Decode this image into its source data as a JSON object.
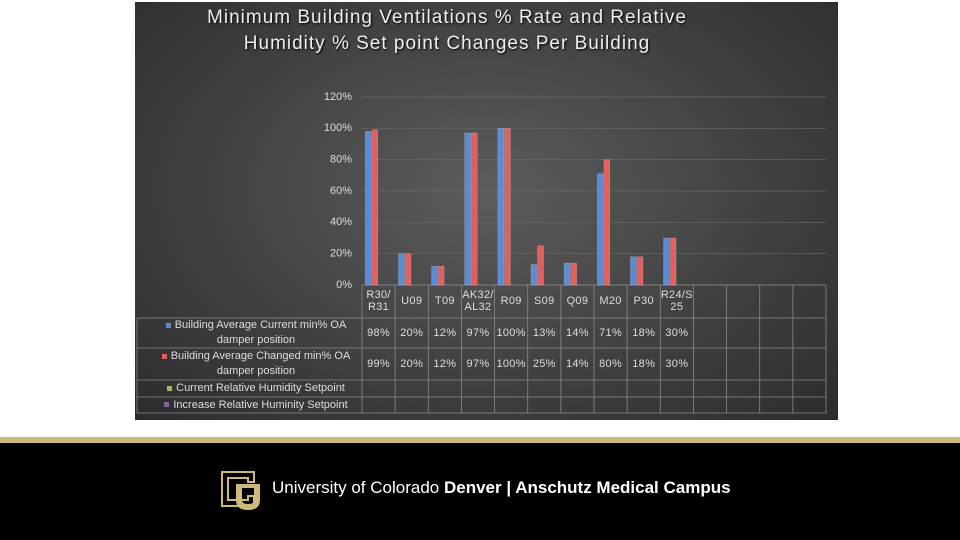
{
  "chart_data": {
    "type": "bar",
    "title": "Minimum Building Ventilations % Rate and Relative Humidity % Set point Changes Per Building",
    "categories": [
      "R30/ R31",
      "U09",
      "T09",
      "AK32/ AL32",
      "R09",
      "S09",
      "Q09",
      "M20",
      "P30",
      "R24/S 25",
      null,
      null,
      null,
      null
    ],
    "series": [
      {
        "name": "Building Average Current min% OA damper position",
        "color": "#5b8bd4",
        "values": [
          98,
          20,
          12,
          97,
          100,
          13,
          14,
          71,
          18,
          30,
          null,
          null,
          null,
          null
        ],
        "value_labels": [
          "98%",
          "20%",
          "12%",
          "97%",
          "100%",
          "13%",
          "14%",
          "71%",
          "18%",
          "30%",
          null,
          null,
          null,
          null
        ]
      },
      {
        "name": "Building Average Changed min% OA damper position",
        "color": "#e06060",
        "values": [
          99,
          20,
          12,
          97,
          100,
          25,
          14,
          80,
          18,
          30,
          null,
          null,
          null,
          null
        ],
        "value_labels": [
          "99%",
          "20%",
          "12%",
          "97%",
          "100%",
          "25%",
          "14%",
          "80%",
          "18%",
          "30%",
          null,
          null,
          null,
          null
        ]
      },
      {
        "name": "Current Relative Humidity Setpoint",
        "color": "#9bbb59",
        "values": [
          null,
          null,
          null,
          null,
          null,
          null,
          null,
          null,
          null,
          null,
          null,
          null,
          null,
          null
        ]
      },
      {
        "name": "Increase Relative Huminity Setpoint",
        "color": "#8064a2",
        "values": [
          null,
          null,
          null,
          null,
          null,
          null,
          null,
          null,
          null,
          null,
          null,
          null,
          null,
          null
        ]
      }
    ],
    "ylim": [
      0,
      120
    ],
    "yticks": [
      {
        "value": 0,
        "label": "0%"
      },
      {
        "value": 20,
        "label": "20%"
      },
      {
        "value": 40,
        "label": "40%"
      },
      {
        "value": 60,
        "label": "60%"
      },
      {
        "value": 80,
        "label": "80%"
      },
      {
        "value": 100,
        "label": "100%"
      },
      {
        "value": 120,
        "label": "120%"
      }
    ],
    "grid": true
  },
  "footer": {
    "university": "University of Colorado",
    "campus": "Denver | Anschutz Medical Campus"
  }
}
